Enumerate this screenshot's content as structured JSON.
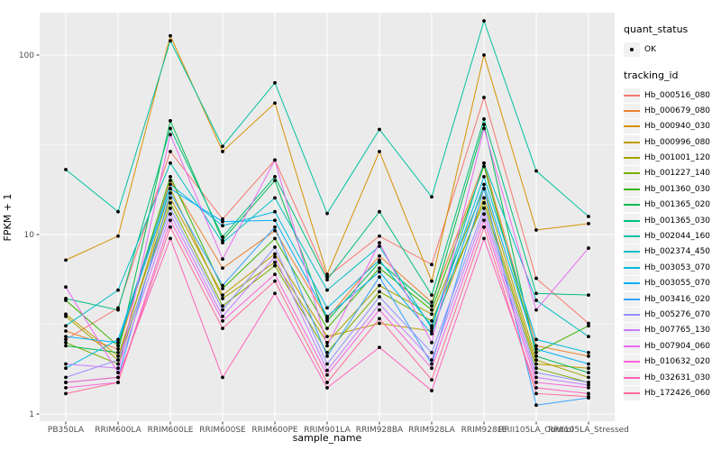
{
  "legend": {
    "quant_status_title": "quant_status",
    "quant_status_items": [
      {
        "label": "OK",
        "marker": "black-point"
      }
    ],
    "tracking_id_title": "tracking_id"
  },
  "colors": {
    "figure_background": "#FFFFFF",
    "panel_background": "#EBEBEB",
    "grid": "#FFFFFF",
    "axis_text": "#4D4D4D",
    "axis_title": "#000000",
    "tick_mark": "#333333",
    "point": "#000000",
    "legend_key_background": "#F1F1F1"
  },
  "chart_data": {
    "type": "line",
    "title": "",
    "xlabel": "sample_name",
    "ylabel": "FPKM + 1",
    "x_scale": "categorical",
    "y_scale": "log10",
    "ylim": [
      0.9,
      175
    ],
    "y_ticks": [
      1,
      10,
      100
    ],
    "y_tick_labels": [
      "1",
      "10",
      "100"
    ],
    "y_minor_ticks": [
      3.162,
      31.623
    ],
    "grid": true,
    "legend_position": "right",
    "marker": "black dot at every point (quant_status = OK)",
    "categories": [
      "PB350LA",
      "RRIM600LA",
      "RRIM600LE",
      "RRIM600SE",
      "RRIM600PE",
      "RRIM901LA",
      "RRIM928BA",
      "RRIM928LA",
      "RRIM928LE",
      "RRII105LA_Control",
      "RRII105LA_Stressed"
    ],
    "series": [
      {
        "name": "Hb_000516_080",
        "color": "#F8766D",
        "values": [
          2.6,
          3.9,
          29,
          12.2,
          26,
          5.8,
          9.8,
          6.8,
          58,
          5.7,
          3.2
        ]
      },
      {
        "name": "Hb_000679_080",
        "color": "#EA8331",
        "values": [
          2.9,
          2.3,
          20,
          6.5,
          10.5,
          3.4,
          7.6,
          4.2,
          25,
          2.4,
          2.1
        ]
      },
      {
        "name": "Hb_000940_030",
        "color": "#D89000",
        "values": [
          7.2,
          9.8,
          128,
          29,
          54,
          6.0,
          29,
          5.5,
          100,
          10.6,
          11.5
        ]
      },
      {
        "name": "Hb_000996_080",
        "color": "#C09B00",
        "values": [
          3.6,
          2.1,
          16,
          4.6,
          7.8,
          2.7,
          3.2,
          2.9,
          16,
          1.9,
          1.8
        ]
      },
      {
        "name": "Hb_001001_120",
        "color": "#A3A500",
        "values": [
          3.5,
          2.0,
          18,
          4.4,
          7.0,
          2.5,
          5.2,
          3.6,
          18,
          2.0,
          1.6
        ]
      },
      {
        "name": "Hb_001227_140",
        "color": "#7CAE00",
        "values": [
          2.5,
          1.9,
          15,
          4.0,
          6.7,
          2.2,
          4.8,
          3.3,
          15,
          1.8,
          1.5
        ]
      },
      {
        "name": "Hb_001360_030",
        "color": "#39B600",
        "values": [
          4.3,
          2.4,
          21,
          5.0,
          9.5,
          3.0,
          6.5,
          3.8,
          24,
          2.2,
          3.1
        ]
      },
      {
        "name": "Hb_001365_020",
        "color": "#00BB4E",
        "values": [
          2.4,
          2.2,
          43,
          9.3,
          20,
          3.3,
          7.0,
          4.0,
          41,
          2.1,
          1.7
        ]
      },
      {
        "name": "Hb_001365_030",
        "color": "#00BF7D",
        "values": [
          4.4,
          3.8,
          39,
          9.7,
          21,
          5.6,
          13.4,
          4.6,
          44,
          4.7,
          4.6
        ]
      },
      {
        "name": "Hb_002044_160",
        "color": "#00C1A3",
        "values": [
          23,
          13.4,
          120,
          31,
          70,
          13.1,
          38.5,
          16.2,
          155,
          22.6,
          12.6
        ]
      },
      {
        "name": "Hb_002374_450",
        "color": "#00BFC4",
        "values": [
          3.1,
          4.9,
          25,
          9.0,
          16,
          4.9,
          8.6,
          3.0,
          25,
          4.3,
          2.7
        ]
      },
      {
        "name": "Hb_003053_070",
        "color": "#00BAE0",
        "values": [
          1.8,
          2.6,
          19,
          11.2,
          13.4,
          3.9,
          7.2,
          3.1,
          21,
          2.6,
          2.2
        ]
      },
      {
        "name": "Hb_003055_070",
        "color": "#00B0F6",
        "values": [
          2.7,
          2.5,
          18,
          11.8,
          12,
          3.5,
          6.2,
          2.8,
          19,
          2.3,
          1.9
        ]
      },
      {
        "name": "Hb_003416_020",
        "color": "#35A2FF",
        "values": [
          1.5,
          1.6,
          17,
          5.2,
          11,
          2.1,
          5.8,
          1.9,
          18,
          1.12,
          1.23
        ]
      },
      {
        "name": "Hb_005276_070",
        "color": "#9590FF",
        "values": [
          1.6,
          2.0,
          14,
          3.8,
          8.5,
          1.9,
          4.5,
          2.2,
          14,
          1.7,
          1.5
        ]
      },
      {
        "name": "Hb_007765_130",
        "color": "#C77CFF",
        "values": [
          1.9,
          1.8,
          13,
          3.5,
          7.5,
          1.75,
          4.1,
          2.0,
          13,
          1.6,
          1.45
        ]
      },
      {
        "name": "Hb_007904_060",
        "color": "#E76BF3",
        "values": [
          5.1,
          1.7,
          36,
          7.3,
          26,
          2.4,
          9.0,
          2.5,
          39,
          3.8,
          8.4
        ]
      },
      {
        "name": "Hb_010632_020",
        "color": "#FA62DB",
        "values": [
          1.4,
          1.5,
          12,
          3.3,
          6.0,
          1.65,
          3.8,
          1.8,
          12,
          1.5,
          1.4
        ]
      },
      {
        "name": "Hb_032631_030",
        "color": "#FF62BC",
        "values": [
          1.5,
          1.6,
          9.5,
          1.6,
          4.7,
          1.4,
          2.35,
          1.35,
          9.5,
          1.4,
          1.3
        ]
      },
      {
        "name": "Hb_172426_060",
        "color": "#FF6A98",
        "values": [
          1.3,
          1.5,
          11,
          3.0,
          5.5,
          1.5,
          3.4,
          1.55,
          11,
          1.3,
          1.25
        ]
      }
    ]
  }
}
